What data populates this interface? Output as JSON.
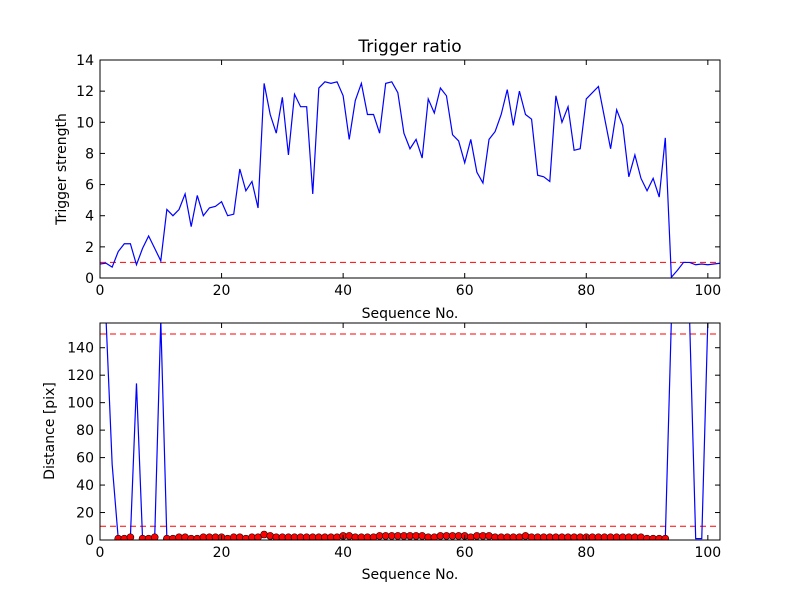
{
  "chart_data": [
    {
      "type": "line",
      "title": "Trigger ratio",
      "xlabel": "Sequence No.",
      "ylabel": "Trigger strength",
      "xlim": [
        0,
        102
      ],
      "ylim": [
        0,
        14
      ],
      "xticks": [
        0,
        20,
        40,
        60,
        80,
        100
      ],
      "yticks": [
        0,
        2,
        4,
        6,
        8,
        10,
        12,
        14
      ],
      "series": [
        {
          "color": "#0000ff",
          "x": [
            0,
            1,
            2,
            3,
            4,
            5,
            6,
            7,
            8,
            9,
            10,
            11,
            12,
            13,
            14,
            15,
            16,
            17,
            18,
            19,
            20,
            21,
            22,
            23,
            24,
            25,
            26,
            27,
            28,
            29,
            30,
            31,
            32,
            33,
            34,
            35,
            36,
            37,
            38,
            39,
            40,
            41,
            42,
            43,
            44,
            45,
            46,
            47,
            48,
            49,
            50,
            51,
            52,
            53,
            54,
            55,
            56,
            57,
            58,
            59,
            60,
            61,
            62,
            63,
            64,
            65,
            66,
            67,
            68,
            69,
            70,
            71,
            72,
            73,
            74,
            75,
            76,
            77,
            78,
            79,
            80,
            81,
            82,
            83,
            84,
            85,
            86,
            87,
            88,
            89,
            90,
            91,
            92,
            93,
            94,
            95,
            96,
            97,
            98,
            99,
            100,
            101,
            102
          ],
          "y": [
            0.9,
            0.95,
            0.7,
            1.7,
            2.2,
            2.2,
            0.85,
            1.9,
            2.7,
            1.9,
            1.1,
            4.4,
            4.0,
            4.4,
            5.4,
            3.3,
            5.3,
            4.0,
            4.5,
            4.6,
            4.9,
            4.0,
            4.1,
            7.0,
            5.6,
            6.2,
            4.5,
            12.5,
            10.5,
            9.3,
            11.6,
            7.9,
            11.8,
            11.0,
            11.0,
            5.4,
            12.2,
            12.6,
            12.5,
            12.6,
            11.7,
            8.9,
            11.4,
            12.5,
            10.5,
            10.5,
            9.3,
            12.5,
            12.6,
            11.9,
            9.3,
            8.3,
            8.9,
            7.7,
            11.5,
            10.6,
            12.2,
            11.7,
            9.2,
            8.8,
            7.4,
            8.9,
            6.8,
            6.1,
            8.9,
            9.4,
            10.5,
            12.1,
            9.8,
            12.0,
            10.5,
            10.2,
            6.6,
            6.5,
            6.2,
            11.7,
            10.0,
            11.0,
            8.2,
            8.3,
            11.5,
            11.9,
            12.3,
            10.3,
            8.3,
            10.8,
            9.8,
            6.5,
            7.9,
            6.4,
            5.6,
            6.4,
            5.2,
            9.0,
            0.05,
            0.5,
            1.0,
            1.0,
            0.85,
            0.9,
            0.85,
            0.9,
            0.95
          ]
        }
      ],
      "hlines": [
        {
          "y": 1,
          "color": "#ff0000",
          "style": "dashed"
        }
      ],
      "grid": false
    },
    {
      "type": "line",
      "title": "",
      "xlabel": "Sequence No.",
      "ylabel": "Distance [pix]",
      "xlim": [
        0,
        102
      ],
      "ylim": [
        0,
        158
      ],
      "xticks": [
        0,
        20,
        40,
        60,
        80,
        100
      ],
      "yticks": [
        0,
        20,
        40,
        60,
        80,
        100,
        120,
        140
      ],
      "series": [
        {
          "color": "#0000ff",
          "marker_color": "#ff0000",
          "x": [
            0,
            1,
            2,
            3,
            4,
            5,
            6,
            7,
            8,
            9,
            10,
            11,
            12,
            13,
            14,
            15,
            16,
            17,
            18,
            19,
            20,
            21,
            22,
            23,
            24,
            25,
            26,
            27,
            28,
            29,
            30,
            31,
            32,
            33,
            34,
            35,
            36,
            37,
            38,
            39,
            40,
            41,
            42,
            43,
            44,
            45,
            46,
            47,
            48,
            49,
            50,
            51,
            52,
            53,
            54,
            55,
            56,
            57,
            58,
            59,
            60,
            61,
            62,
            63,
            64,
            65,
            66,
            67,
            68,
            69,
            70,
            71,
            72,
            73,
            74,
            75,
            76,
            77,
            78,
            79,
            80,
            81,
            82,
            83,
            84,
            85,
            86,
            87,
            88,
            89,
            90,
            91,
            92,
            93,
            94,
            95,
            96,
            97,
            98,
            99,
            100,
            101
          ],
          "y": [
            160,
            160,
            55,
            1,
            1,
            2,
            114,
            1,
            1,
            2,
            160,
            1,
            1,
            2,
            2,
            1,
            1,
            2,
            2,
            2,
            2,
            1,
            2,
            2,
            1,
            2,
            2,
            4,
            3,
            2,
            2,
            2,
            2,
            2,
            2,
            2,
            2,
            2,
            2,
            2,
            3,
            3,
            2,
            2,
            2,
            2,
            3,
            3,
            3,
            3,
            3,
            3,
            3,
            3,
            2,
            2,
            3,
            3,
            3,
            3,
            3,
            2,
            3,
            3,
            3,
            2,
            2,
            2,
            2,
            2,
            3,
            2,
            2,
            2,
            2,
            2,
            2,
            2,
            2,
            2,
            2,
            2,
            2,
            2,
            2,
            2,
            2,
            2,
            2,
            2,
            1,
            1,
            1,
            1,
            160,
            160,
            160,
            160,
            1,
            1,
            160,
            160
          ],
          "markers_x": [
            3,
            4,
            5,
            7,
            8,
            9,
            11,
            12,
            13,
            14,
            15,
            16,
            17,
            18,
            19,
            20,
            21,
            22,
            23,
            24,
            25,
            26,
            27,
            28,
            29,
            30,
            31,
            32,
            33,
            34,
            35,
            36,
            37,
            38,
            39,
            40,
            41,
            42,
            43,
            44,
            45,
            46,
            47,
            48,
            49,
            50,
            51,
            52,
            53,
            54,
            55,
            56,
            57,
            58,
            59,
            60,
            61,
            62,
            63,
            64,
            65,
            66,
            67,
            68,
            69,
            70,
            71,
            72,
            73,
            74,
            75,
            76,
            77,
            78,
            79,
            80,
            81,
            82,
            83,
            84,
            85,
            86,
            87,
            88,
            89,
            90,
            91,
            92,
            93
          ]
        }
      ],
      "hlines": [
        {
          "y": 10,
          "color": "#ff0000",
          "style": "dashed"
        },
        {
          "y": 150,
          "color": "#ff0000",
          "style": "dashed"
        }
      ],
      "grid": false
    }
  ]
}
